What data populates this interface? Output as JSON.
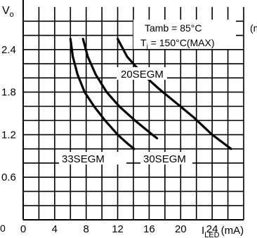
{
  "chart_data": {
    "type": "line",
    "ylabel": "Vo",
    "ylabel_main": "V",
    "ylabel_sub": "o",
    "xlabel_main": "I",
    "xlabel_sub": "LED",
    "xlabel_unit": "(mA)",
    "top_right_partial": "(m",
    "bottom_left_partial": "0",
    "xlim": [
      0,
      28
    ],
    "ylim": [
      0,
      3.0
    ],
    "x_ticks": [
      0,
      4,
      8,
      12,
      16,
      20,
      24
    ],
    "x_tick_labels": [
      "0",
      "4",
      "8",
      "12",
      "16",
      "20",
      "24"
    ],
    "y_ticks": [
      0.6,
      1.2,
      1.8,
      2.4
    ],
    "y_tick_labels": [
      "0.6",
      "1.2",
      "1.8",
      "2.4"
    ],
    "grid": true,
    "minor_grid": {
      "x_step": 2,
      "y_step": 0.2
    },
    "conditions": {
      "line1": "Tamb = 85°C",
      "line2_main": "T",
      "line2_sub": "j",
      "line2_rest": " = 150°C(MAX)"
    },
    "series": [
      {
        "name": "33SEGM",
        "x": [
          6.0,
          6.3,
          6.9,
          7.8,
          9.0,
          10.4,
          12.0,
          13.2,
          14.1
        ],
        "y": [
          2.55,
          2.3,
          2.05,
          1.8,
          1.6,
          1.4,
          1.2,
          1.08,
          1.0
        ]
      },
      {
        "name": "30SEGM",
        "x": [
          7.6,
          8.2,
          9.2,
          10.6,
          12.2,
          14.2,
          16.4,
          17.0
        ],
        "y": [
          2.55,
          2.3,
          2.05,
          1.8,
          1.6,
          1.4,
          1.2,
          1.15
        ]
      },
      {
        "name": "20SEGM",
        "x": [
          12.0,
          13.2,
          15.2,
          17.2,
          19.4,
          21.6,
          24.0,
          26.4
        ],
        "y": [
          2.55,
          2.3,
          2.05,
          1.85,
          1.65,
          1.45,
          1.2,
          1.0
        ]
      }
    ]
  }
}
